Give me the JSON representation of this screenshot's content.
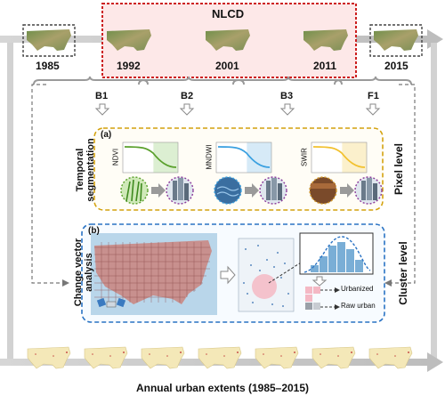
{
  "nlcd_label": "NLCD",
  "years": [
    "1985",
    "1992",
    "2001",
    "2011",
    "2015"
  ],
  "bands": [
    "B1",
    "B2",
    "B3",
    "F1"
  ],
  "panel_a": {
    "tag": "(a)",
    "side_title_line1": "Temporal",
    "side_title_line2": "segmentation",
    "right_title": "Pixel level",
    "indices": [
      "NDVI",
      "MNDWI",
      "SWIR"
    ]
  },
  "panel_b": {
    "tag": "(b)",
    "side_title_line1": "Change vector",
    "side_title_line2": "analysis",
    "right_title": "Cluster level",
    "legend_urbanized": "Urbanized",
    "legend_raw": "Raw urban"
  },
  "bottom_caption": "Annual urban extents (1985–2015)",
  "colors": {
    "nlcd_border": "#cc1f1f",
    "nlcd_fill": "#fde8e8",
    "panel_a_border": "#d4a20f",
    "panel_b_border": "#2a73c4",
    "ndvi_curve": "#5aa02c",
    "mndwi_curve": "#3aa0e0",
    "swir_curve": "#f2c12e",
    "histogram": "#7aaed6"
  }
}
